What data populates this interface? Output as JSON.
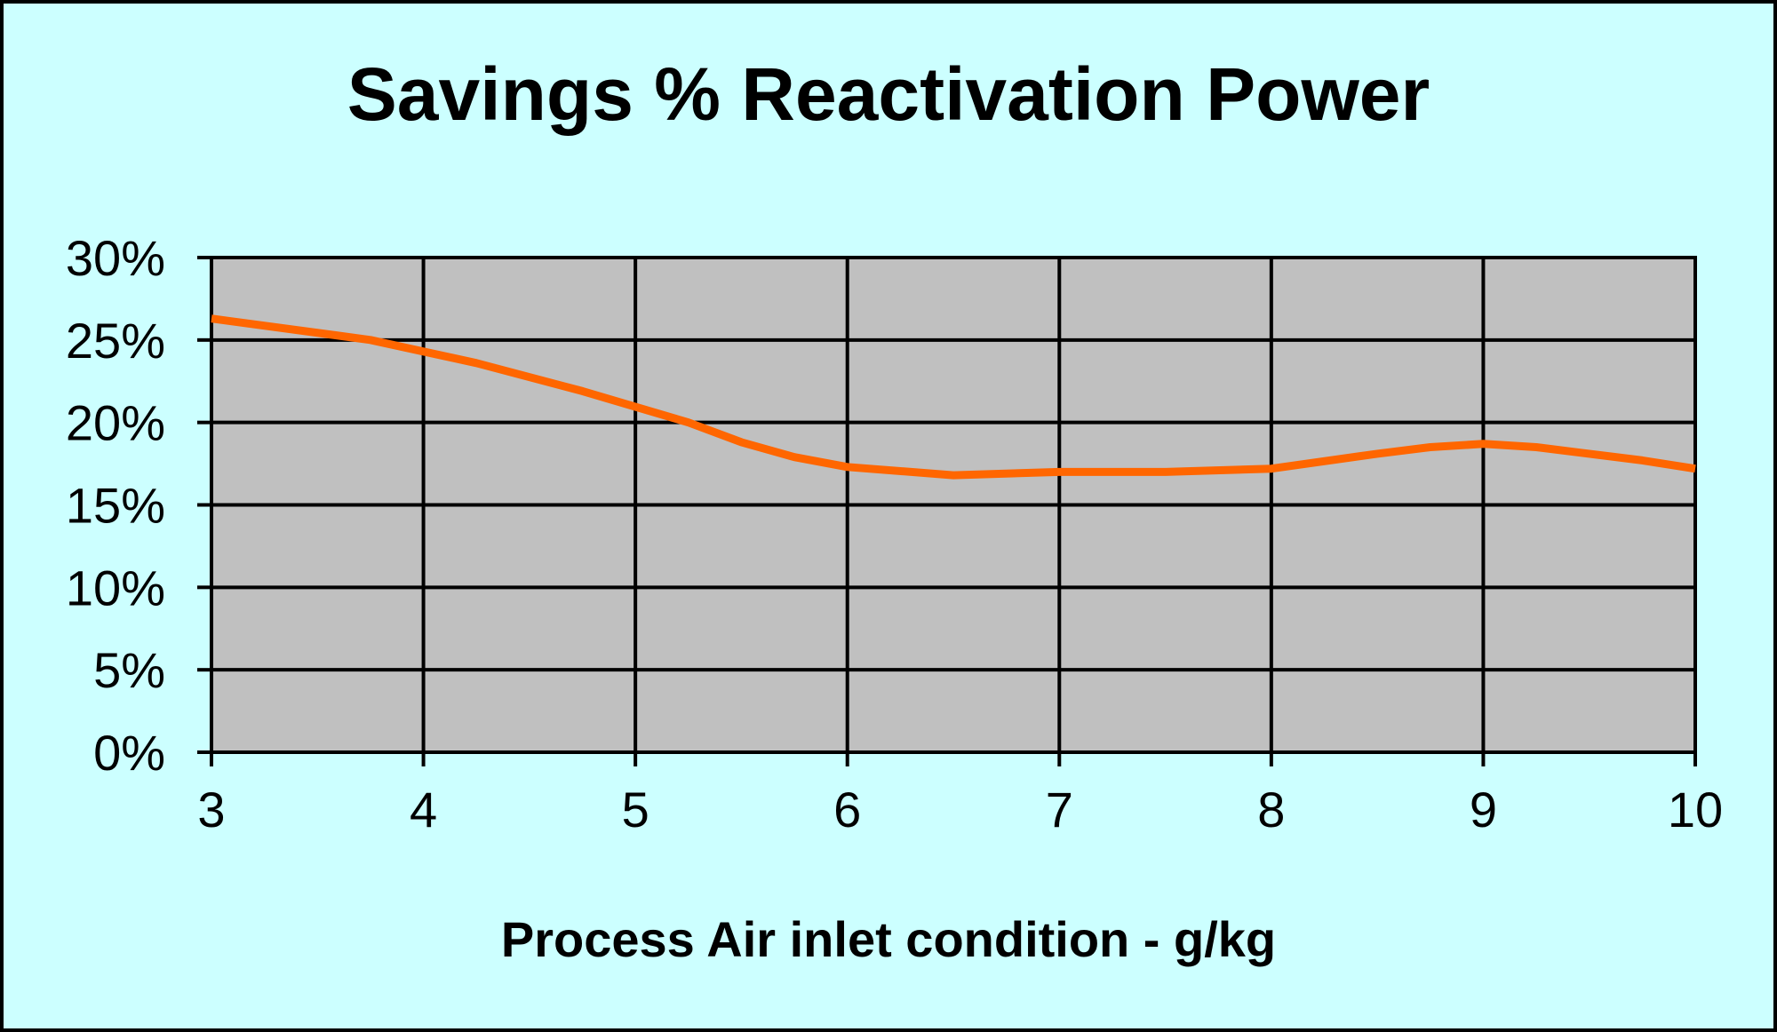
{
  "chart_data": {
    "type": "line",
    "title": "Savings % Reactivation Power",
    "xlabel": "Process Air inlet condition - g/kg",
    "ylabel": "",
    "xlim": [
      3,
      10
    ],
    "ylim": [
      0,
      0.3
    ],
    "x_ticks": [
      3,
      4,
      5,
      6,
      7,
      8,
      9,
      10
    ],
    "x_tick_labels": [
      "3",
      "4",
      "5",
      "6",
      "7",
      "8",
      "9",
      "10"
    ],
    "y_ticks": [
      0,
      0.05,
      0.1,
      0.15,
      0.2,
      0.25,
      0.3
    ],
    "y_tick_labels": [
      "0%",
      "5%",
      "10%",
      "15%",
      "20%",
      "25%",
      "30%"
    ],
    "grid": true,
    "legend": "none",
    "series": [
      {
        "color": "#ff6600",
        "x": [
          3,
          3.75,
          4.25,
          4.75,
          5.25,
          5.5,
          5.75,
          6,
          6.5,
          7,
          7.5,
          8,
          8.5,
          8.75,
          9,
          9.25,
          9.75,
          10
        ],
        "y": [
          0.263,
          0.25,
          0.236,
          0.219,
          0.2,
          0.188,
          0.179,
          0.173,
          0.168,
          0.17,
          0.17,
          0.172,
          0.181,
          0.185,
          0.187,
          0.185,
          0.177,
          0.172
        ]
      }
    ],
    "colors": {
      "background": "#ccffff",
      "plot_area": "#c0c0c0",
      "grid": "#000000",
      "line": "#ff6600"
    }
  }
}
